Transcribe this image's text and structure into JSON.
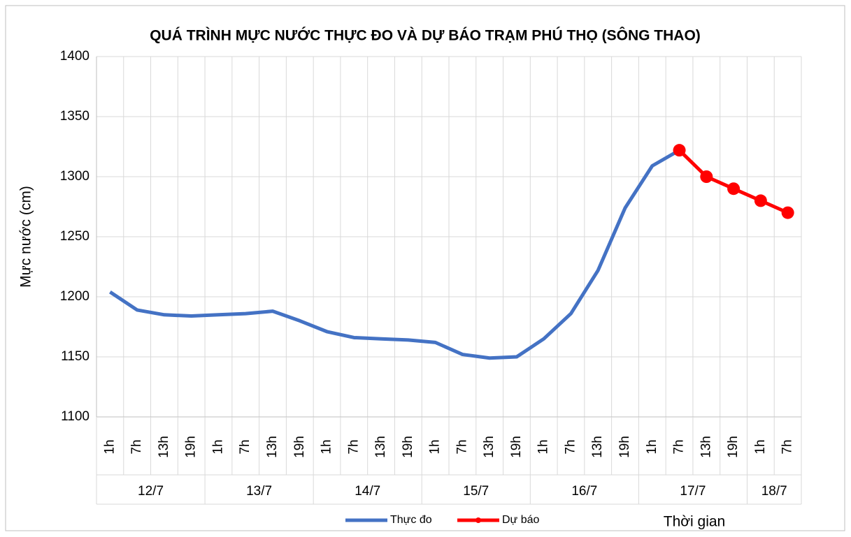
{
  "chart_data": {
    "type": "line",
    "title": "QUÁ TRÌNH MỰC NƯỚC THỰC ĐO VÀ DỰ BÁO TRẠM PHÚ THỌ (SÔNG THAO)",
    "y_label": "Mực nước (cm)",
    "x_label": "Thời gian",
    "groups": [
      {
        "name": "12/7",
        "categories": [
          "1h",
          "7h",
          "13h",
          "19h"
        ]
      },
      {
        "name": "13/7",
        "categories": [
          "1h",
          "7h",
          "13h",
          "19h"
        ]
      },
      {
        "name": "14/7",
        "categories": [
          "1h",
          "7h",
          "13h",
          "19h"
        ]
      },
      {
        "name": "15/7",
        "categories": [
          "1h",
          "7h",
          "13h",
          "19h"
        ]
      },
      {
        "name": "16/7",
        "categories": [
          "1h",
          "7h",
          "13h",
          "19h"
        ]
      },
      {
        "name": "17/7",
        "categories": [
          "1h",
          "7h",
          "13h",
          "19h"
        ]
      },
      {
        "name": "18/7",
        "categories": [
          "1h",
          "7h"
        ]
      }
    ],
    "series": [
      {
        "name": "Thực đo",
        "color": "#4472c4",
        "markers": false,
        "values": [
          1204,
          1189,
          1185,
          1184,
          1185,
          1186,
          1188,
          1180,
          1171,
          1166,
          1165,
          1164,
          1162,
          1152,
          1149,
          1150,
          1165,
          1186,
          1222,
          1274,
          1309,
          1322,
          null,
          null,
          null,
          null
        ]
      },
      {
        "name": "Dự báo",
        "color": "#ff0000",
        "markers": true,
        "values": [
          null,
          null,
          null,
          null,
          null,
          null,
          null,
          null,
          null,
          null,
          null,
          null,
          null,
          null,
          null,
          null,
          null,
          null,
          null,
          null,
          null,
          1322,
          1300,
          1290,
          1280,
          1270
        ]
      }
    ],
    "ylim": [
      1100,
      1400
    ],
    "yticks": [
      1100,
      1150,
      1200,
      1250,
      1300,
      1350,
      1400
    ],
    "grid": true,
    "legend": "bottom"
  }
}
